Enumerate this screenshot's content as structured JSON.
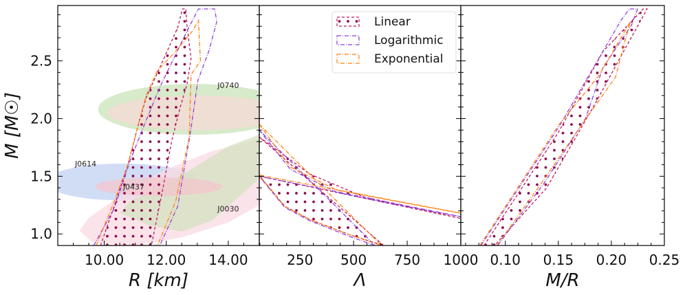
{
  "chart_data": [
    {
      "type": "area",
      "xlabel": "R [km]",
      "ylabel": "M [M☉]",
      "xlim": [
        8.5,
        15.0
      ],
      "ylim": [
        0.9,
        2.98
      ],
      "xticks": [
        10,
        12,
        14
      ],
      "xtick_labels": [
        "10.00",
        "12.00",
        "14.00"
      ],
      "yticks": [
        1.0,
        1.5,
        2.0,
        2.5
      ],
      "ytick_labels": [
        "1.0",
        "1.5",
        "2.0",
        "2.5"
      ],
      "regions": [
        {
          "label": "J0740",
          "color": "#c9e3b8",
          "shape": "ellipse",
          "center": [
            12.9,
            2.08
          ],
          "radii": [
            3.1,
            0.22
          ],
          "label_at": [
            14.0,
            2.29
          ]
        },
        {
          "label": "",
          "color": "#f6d9d6",
          "shape": "ellipse",
          "center": [
            13.0,
            2.05
          ],
          "radii": [
            2.9,
            0.15
          ]
        },
        {
          "label": "J0614",
          "color": "#c2d1f2",
          "shape": "ellipse",
          "center": [
            10.6,
            1.45
          ],
          "radii": [
            2.5,
            0.16
          ],
          "label_at": [
            9.4,
            1.61
          ]
        },
        {
          "label": "J0030",
          "color": "#f9d9e3",
          "shape": "polygon",
          "points": [
            [
              9.2,
              1.03
            ],
            [
              9.6,
              0.93
            ],
            [
              11,
              0.9
            ],
            [
              12.5,
              0.97
            ],
            [
              14,
              1.1
            ],
            [
              15,
              1.25
            ],
            [
              15,
              1.82
            ],
            [
              13.5,
              1.72
            ],
            [
              12,
              1.56
            ],
            [
              10.5,
              1.33
            ],
            [
              9.5,
              1.14
            ]
          ],
          "label_at": [
            14.0,
            1.22
          ]
        },
        {
          "label": "",
          "color": "#d4e2c0",
          "shape": "polygon",
          "points": [
            [
              10.5,
              1.18
            ],
            [
              11.5,
              1.07
            ],
            [
              12.5,
              1.02
            ],
            [
              13.5,
              1.12
            ],
            [
              15,
              1.48
            ],
            [
              15,
              1.86
            ],
            [
              14,
              1.76
            ],
            [
              12.8,
              1.56
            ],
            [
              11.8,
              1.4
            ],
            [
              10.8,
              1.28
            ]
          ]
        },
        {
          "label": "J0437",
          "color": "#f3c6cc",
          "shape": "ellipse",
          "center": [
            11.75,
            1.41
          ],
          "radii": [
            2.05,
            0.08
          ],
          "label_at": [
            10.95,
            1.41
          ]
        }
      ],
      "series": [
        {
          "name": "Linear",
          "color": "#c2185b",
          "hatch": "dots",
          "dash": "4 3",
          "left": [
            [
              9.88,
              0.9
            ],
            [
              10.32,
              1.24
            ],
            [
              10.76,
              1.6
            ],
            [
              11.13,
              1.98
            ],
            [
              11.35,
              2.18
            ],
            [
              11.79,
              2.44
            ],
            [
              12.37,
              2.79
            ],
            [
              12.52,
              2.95
            ]
          ],
          "right": [
            [
              12.63,
              2.95
            ],
            [
              12.67,
              2.8
            ],
            [
              12.8,
              2.52
            ],
            [
              12.67,
              2.3
            ],
            [
              12.45,
              2.1
            ],
            [
              12.17,
              1.8
            ],
            [
              11.88,
              1.38
            ],
            [
              11.52,
              0.9
            ]
          ]
        },
        {
          "name": "Logarithmic",
          "color": "#8e3fd6",
          "dash": "6 2 1 2",
          "left": [
            [
              9.66,
              0.9
            ],
            [
              10.32,
              1.22
            ],
            [
              10.84,
              1.64
            ],
            [
              11.3,
              1.95
            ],
            [
              11.79,
              2.27
            ],
            [
              12.67,
              2.76
            ],
            [
              13.04,
              2.95
            ]
          ],
          "right": [
            [
              13.56,
              2.95
            ],
            [
              13.63,
              2.84
            ],
            [
              13.38,
              2.59
            ],
            [
              13.02,
              2.33
            ],
            [
              12.78,
              1.88
            ],
            [
              12.37,
              1.24
            ],
            [
              11.79,
              0.9
            ]
          ]
        },
        {
          "name": "Exponential",
          "color": "#ff7f0e",
          "dash": "6 2 1 2",
          "left": [
            [
              9.74,
              0.9
            ],
            [
              10.32,
              1.28
            ],
            [
              10.76,
              1.6
            ],
            [
              11.13,
              1.98
            ],
            [
              11.35,
              2.2
            ],
            [
              11.72,
              2.42
            ],
            [
              12.23,
              2.56
            ],
            [
              12.85,
              2.76
            ]
          ],
          "right": [
            [
              13.04,
              2.85
            ],
            [
              13.1,
              2.5
            ],
            [
              12.8,
              2.38
            ],
            [
              12.74,
              1.84
            ],
            [
              12.3,
              1.28
            ],
            [
              11.72,
              0.9
            ]
          ]
        }
      ]
    },
    {
      "type": "area",
      "xlabel": "Λ",
      "ylabel": "",
      "xlim": [
        60,
        1000
      ],
      "ylim": [
        0.9,
        2.98
      ],
      "xticks": [
        250,
        500,
        750,
        1000
      ],
      "xtick_labels": [
        "250",
        "500",
        "750",
        "1000"
      ],
      "legend": {
        "position": "top-right",
        "entries": [
          "Linear",
          "Logarithmic",
          "Exponential"
        ]
      },
      "series": [
        {
          "name": "Linear",
          "color": "#c2185b",
          "hatch": "dots",
          "dash": "4 3",
          "left": [
            [
              60,
              1.84
            ],
            [
              295,
              1.52
            ],
            [
              549,
              1.32
            ],
            [
              1000,
              1.135
            ]
          ],
          "right": [
            [
              60,
              1.5
            ],
            [
              179,
              1.24
            ],
            [
              295,
              1.125
            ],
            [
              486,
              0.99
            ],
            [
              640,
              0.9
            ]
          ]
        },
        {
          "name": "Logarithmic",
          "color": "#8e3fd6",
          "dash": "6 2 1 2",
          "left": [
            [
              60,
              1.9
            ],
            [
              205,
              1.56
            ],
            [
              422,
              1.36
            ],
            [
              677,
              1.26
            ],
            [
              1000,
              1.15
            ]
          ],
          "right": [
            [
              60,
              1.5
            ],
            [
              179,
              1.23
            ],
            [
              295,
              1.115
            ],
            [
              486,
              0.975
            ],
            [
              600,
              0.9
            ]
          ]
        },
        {
          "name": "Exponential",
          "color": "#ff7f0e",
          "dash": "6 2 1 2",
          "left": [
            [
              60,
              1.95
            ],
            [
              205,
              1.58
            ],
            [
              422,
              1.38
            ],
            [
              677,
              1.29
            ],
            [
              1000,
              1.18
            ]
          ],
          "right": [
            [
              60,
              1.51
            ],
            [
              179,
              1.24
            ],
            [
              295,
              1.125
            ],
            [
              486,
              0.99
            ],
            [
              630,
              0.9
            ]
          ]
        }
      ]
    },
    {
      "type": "area",
      "xlabel": "M/R",
      "ylabel": "",
      "xlim": [
        0.058,
        0.25
      ],
      "ylim": [
        0.9,
        2.98
      ],
      "xticks": [
        0.1,
        0.15,
        0.2,
        0.25
      ],
      "xtick_labels": [
        "0.10",
        "0.15",
        "0.20",
        "0.25"
      ],
      "series": [
        {
          "name": "Linear",
          "color": "#c2185b",
          "hatch": "dots",
          "dash": "4 3",
          "left": [
            [
              0.08,
              0.9
            ],
            [
              0.15,
              1.88
            ],
            [
              0.192,
              2.58
            ],
            [
              0.23,
              2.95
            ]
          ],
          "right": [
            [
              0.2337,
              2.95
            ],
            [
              0.206,
              2.49
            ],
            [
              0.186,
              2.15
            ],
            [
              0.139,
              1.4
            ],
            [
              0.09,
              0.9
            ]
          ]
        },
        {
          "name": "Logarithmic",
          "color": "#8e3fd6",
          "dash": "6 2 1 2",
          "left": [
            [
              0.077,
              0.9
            ],
            [
              0.15,
              1.92
            ],
            [
              0.209,
              2.85
            ],
            [
              0.217,
              2.95
            ]
          ],
          "right": [
            [
              0.2247,
              2.95
            ],
            [
              0.219,
              2.81
            ],
            [
              0.192,
              2.44
            ],
            [
              0.1756,
              2.0
            ],
            [
              0.1366,
              1.44
            ],
            [
              0.0928,
              0.9
            ]
          ]
        },
        {
          "name": "Exponential",
          "color": "#ff7f0e",
          "dash": "6 2 1 2",
          "left": [
            [
              0.076,
              0.9
            ],
            [
              0.15,
              1.94
            ],
            [
              0.188,
              2.37
            ],
            [
              0.218,
              2.84
            ]
          ],
          "right": [
            [
              0.2115,
              2.63
            ],
            [
              0.204,
              2.36
            ],
            [
              0.17,
              1.92
            ],
            [
              0.134,
              1.44
            ],
            [
              0.092,
              0.9
            ]
          ]
        }
      ]
    }
  ]
}
